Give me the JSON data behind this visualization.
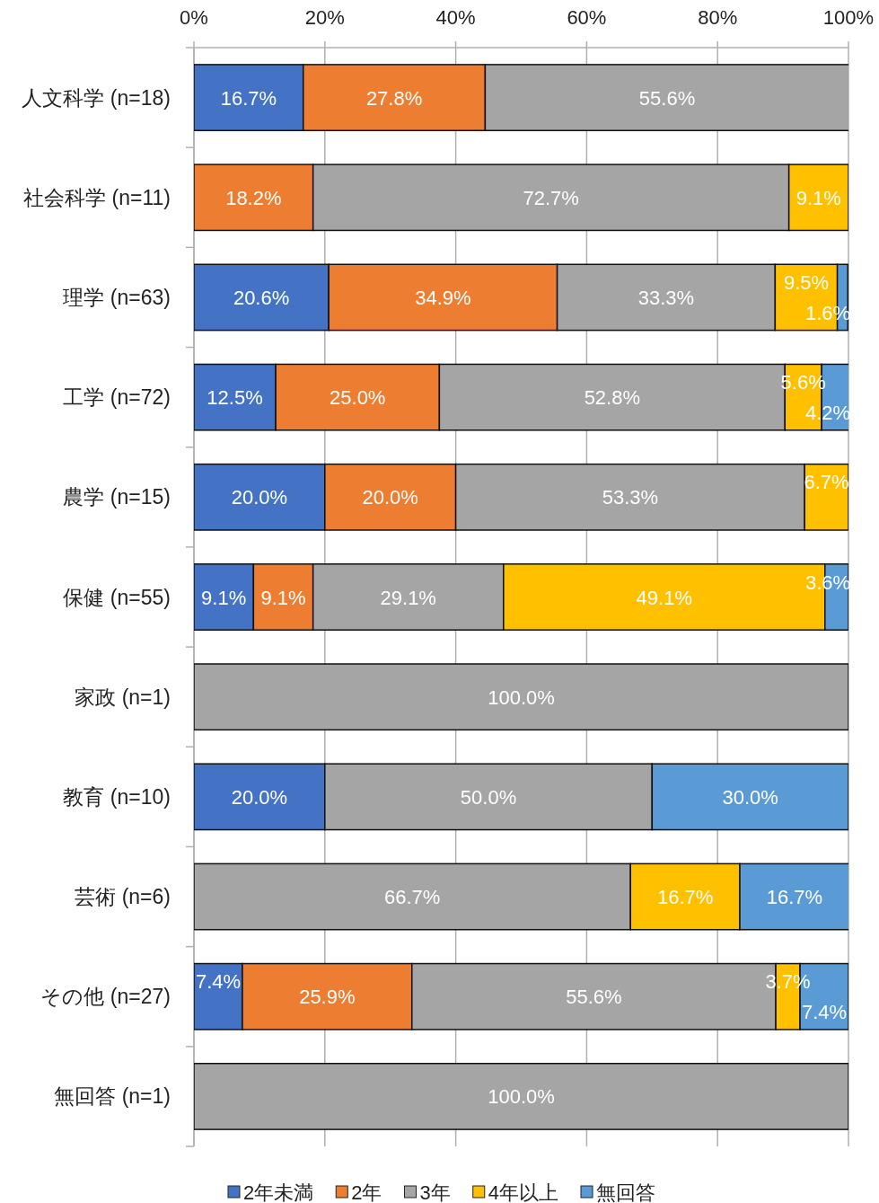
{
  "chart_data": {
    "type": "bar",
    "orientation": "horizontal",
    "stacked": true,
    "categories": [
      "人文科学 (n=18)",
      "社会科学 (n=11)",
      "理学 (n=63)",
      "工学 (n=72)",
      "農学 (n=15)",
      "保健 (n=55)",
      "家政 (n=1)",
      "教育 (n=10)",
      "芸術 (n=6)",
      "その他 (n=27)",
      "無回答 (n=1)"
    ],
    "series": [
      {
        "name": "2年未満",
        "color": "#4472c4",
        "values": [
          16.7,
          null,
          20.6,
          12.5,
          20.0,
          9.1,
          null,
          20.0,
          null,
          7.4,
          null
        ],
        "value_labels": [
          "16.7%",
          null,
          "20.6%",
          "12.5%",
          "20.0%",
          "9.1%",
          null,
          "20.0%",
          null,
          "7.4%",
          null
        ]
      },
      {
        "name": "2年",
        "color": "#ed7d31",
        "values": [
          27.8,
          18.2,
          34.9,
          25.0,
          20.0,
          9.1,
          null,
          null,
          null,
          25.9,
          null
        ],
        "value_labels": [
          "27.8%",
          "18.2%",
          "34.9%",
          "25.0%",
          "20.0%",
          "9.1%",
          null,
          null,
          null,
          "25.9%",
          null
        ]
      },
      {
        "name": "3年",
        "color": "#a5a5a5",
        "values": [
          55.6,
          72.7,
          33.3,
          52.8,
          53.3,
          29.1,
          100.0,
          50.0,
          66.7,
          55.6,
          100.0
        ],
        "value_labels": [
          "55.6%",
          "72.7%",
          "33.3%",
          "52.8%",
          "53.3%",
          "29.1%",
          "100.0%",
          "50.0%",
          "66.7%",
          "55.6%",
          "100.0%"
        ]
      },
      {
        "name": "4年以上",
        "color": "#ffc000",
        "values": [
          null,
          9.1,
          9.5,
          5.6,
          6.7,
          49.1,
          null,
          null,
          16.7,
          3.7,
          null
        ],
        "value_labels": [
          null,
          "9.1%",
          "9.5%",
          "5.6%",
          "6.7%",
          "49.1%",
          null,
          null,
          "16.7%",
          "3.7%",
          null
        ]
      },
      {
        "name": "無回答",
        "color": "#5b9bd5",
        "values": [
          null,
          null,
          1.6,
          4.2,
          null,
          3.6,
          null,
          30.0,
          16.7,
          7.4,
          null
        ],
        "value_labels": [
          null,
          null,
          "1.6%",
          "4.2%",
          null,
          "3.6%",
          null,
          "30.0%",
          "16.7%",
          "7.4%",
          null
        ]
      }
    ],
    "xlim": [
      0,
      100
    ],
    "xticks": [
      {
        "value": 0,
        "label": "0%"
      },
      {
        "value": 20,
        "label": "20%"
      },
      {
        "value": 40,
        "label": "40%"
      },
      {
        "value": 60,
        "label": "60%"
      },
      {
        "value": 80,
        "label": "80%"
      },
      {
        "value": 100,
        "label": "100%"
      }
    ],
    "grid": "x",
    "legend": "bottom"
  }
}
